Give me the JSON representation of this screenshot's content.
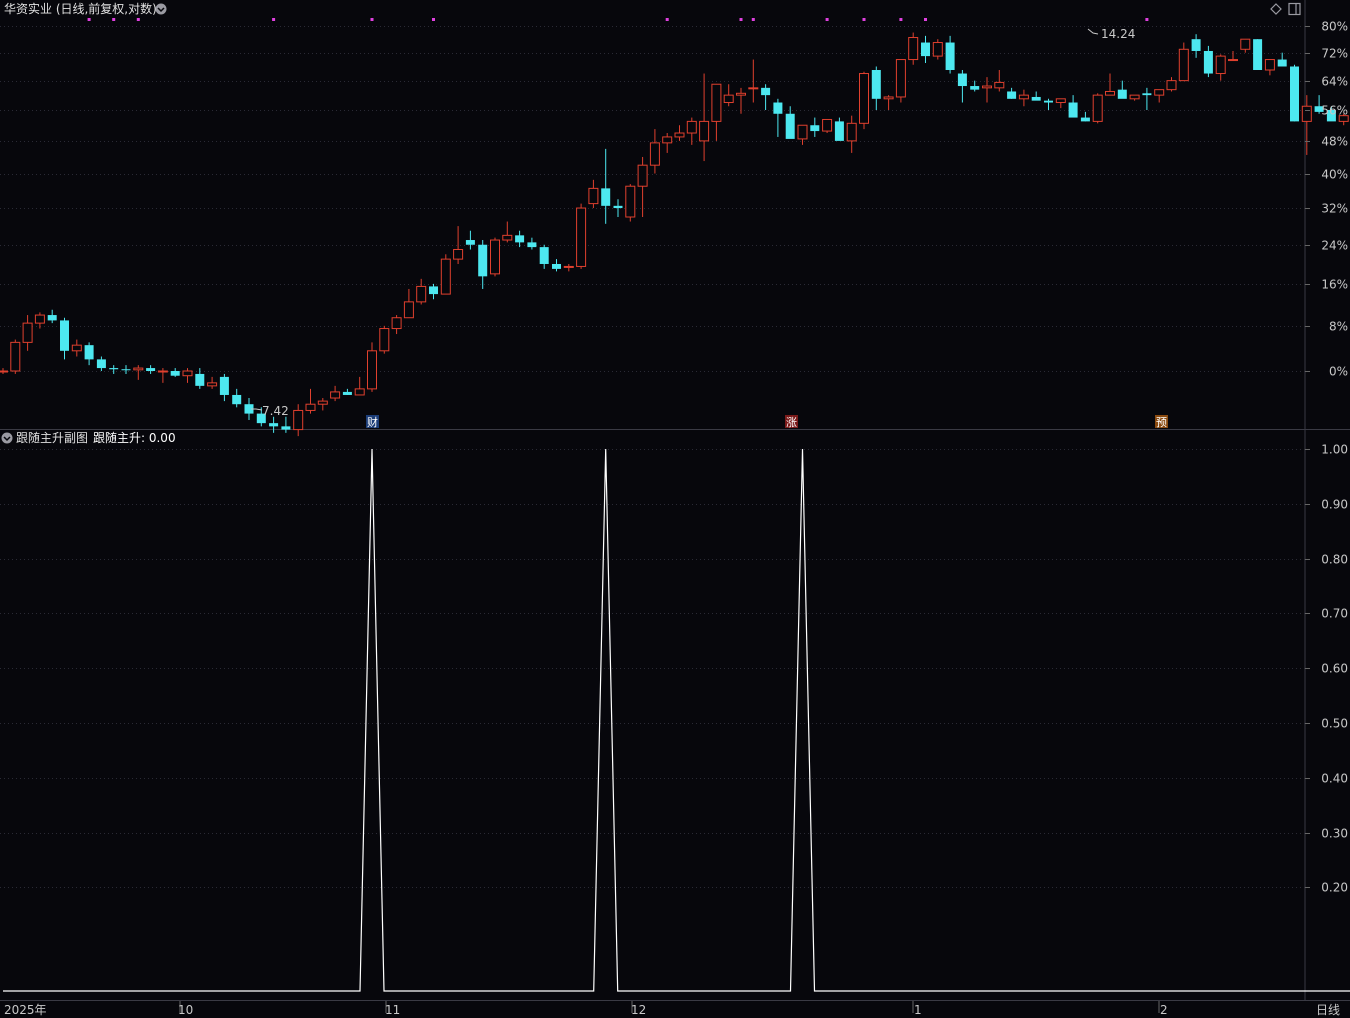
{
  "main_header": {
    "title": "华资实业 (日线,前复权,对数)"
  },
  "main_axis_ticks": [
    "80%",
    "72%",
    "64%",
    "56%",
    "48%",
    "40%",
    "32%",
    "24%",
    "16%",
    "8%",
    "0%"
  ],
  "price_marks": {
    "high": "14.24",
    "low": "7.42"
  },
  "event_tags": [
    {
      "label": "财",
      "color": "#3a6fd0"
    },
    {
      "label": "涨",
      "color": "#d03030"
    },
    {
      "label": "预",
      "color": "#d07a20"
    }
  ],
  "sub_header": {
    "title": "跟随主升副图",
    "indicator": "跟随主升: 0.00"
  },
  "sub_axis_ticks": [
    "1.00",
    "0.90",
    "0.80",
    "0.70",
    "0.60",
    "0.50",
    "0.40",
    "0.30",
    "0.20"
  ],
  "bottom_axis": {
    "labels": [
      "2025年",
      "10",
      "11",
      "12",
      "1",
      "2"
    ],
    "period": "日线"
  },
  "colors": {
    "up": "#e0402e",
    "down": "#4de8f0",
    "signal_dot": "#e040e0",
    "line": "#ffffff",
    "grid": "#2a2a35",
    "text": "#c8c8c8"
  },
  "chart_data": [
    {
      "type": "candlestick",
      "title": "华资实业 (日线,前复权,对数)",
      "scale": "log",
      "y_tick_labels": [
        "80%",
        "72%",
        "64%",
        "56%",
        "48%",
        "40%",
        "32%",
        "24%",
        "16%",
        "8%",
        "0%"
      ],
      "period_high": 14.24,
      "period_low": 7.42,
      "candles_pct": [
        [
          0.0,
          0.5,
          -0.5,
          0.0
        ],
        [
          0.0,
          5.5,
          -0.5,
          5.0
        ],
        [
          5.0,
          10.0,
          3.5,
          8.5
        ],
        [
          8.5,
          10.5,
          7.5,
          10.0
        ],
        [
          10.0,
          11.0,
          8.5,
          9.0
        ],
        [
          9.0,
          9.5,
          2.0,
          3.5
        ],
        [
          3.5,
          5.5,
          2.5,
          4.5
        ],
        [
          4.5,
          5.0,
          1.0,
          2.0
        ],
        [
          2.0,
          2.5,
          0.0,
          0.5
        ],
        [
          0.5,
          1.0,
          -0.5,
          0.3
        ],
        [
          0.3,
          1.0,
          -0.5,
          0.2
        ],
        [
          0.2,
          1.0,
          -1.5,
          0.5
        ],
        [
          0.5,
          1.0,
          -0.5,
          0.0
        ],
        [
          0.0,
          0.5,
          -2.0,
          0.0
        ],
        [
          0.0,
          0.5,
          -1.0,
          -0.8
        ],
        [
          -0.8,
          0.5,
          -2.0,
          0.0
        ],
        [
          -0.5,
          0.5,
          -3.0,
          -2.5
        ],
        [
          -2.5,
          -1.0,
          -3.0,
          -2.0
        ],
        [
          -1.0,
          -0.5,
          -5.0,
          -4.0
        ],
        [
          -4.0,
          -3.0,
          -6.0,
          -5.5
        ],
        [
          -5.5,
          -4.5,
          -8.0,
          -7.0
        ],
        [
          -7.0,
          -6.0,
          -9.0,
          -8.5
        ],
        [
          -8.5,
          -7.5,
          -10.0,
          -9.0
        ],
        [
          -9.0,
          -7.5,
          -10.0,
          -9.5
        ],
        [
          -9.5,
          -5.5,
          -10.5,
          -6.5
        ],
        [
          -6.5,
          -3.0,
          -7.0,
          -5.5
        ],
        [
          -5.5,
          -4.5,
          -6.5,
          -5.0
        ],
        [
          -4.5,
          -2.5,
          -5.0,
          -3.5
        ],
        [
          -3.5,
          -3.0,
          -4.0,
          -4.0
        ],
        [
          -4.0,
          -1.0,
          -4.0,
          -3.0
        ],
        [
          -3.0,
          5.0,
          -3.5,
          3.5
        ],
        [
          3.5,
          8.0,
          3.0,
          7.5
        ],
        [
          7.5,
          10.0,
          6.5,
          9.5
        ],
        [
          9.5,
          15.0,
          9.5,
          12.5
        ],
        [
          12.5,
          17.0,
          12.0,
          15.5
        ],
        [
          15.5,
          16.0,
          13.0,
          14.0
        ],
        [
          14.0,
          22.0,
          14.0,
          21.0
        ],
        [
          21.0,
          28.0,
          20.0,
          23.0
        ],
        [
          25.0,
          27.0,
          23.0,
          24.0
        ],
        [
          24.0,
          25.0,
          15.0,
          17.5
        ],
        [
          18.0,
          25.5,
          17.5,
          25.0
        ],
        [
          25.0,
          29.0,
          24.5,
          26.0
        ],
        [
          26.0,
          27.0,
          23.5,
          24.5
        ],
        [
          24.5,
          25.5,
          23.0,
          23.5
        ],
        [
          23.5,
          24.0,
          19.0,
          20.0
        ],
        [
          20.0,
          21.0,
          18.5,
          19.0
        ],
        [
          19.5,
          20.0,
          18.5,
          19.5
        ],
        [
          19.5,
          33.0,
          19.0,
          32.0
        ],
        [
          33.0,
          38.5,
          32.0,
          36.5
        ],
        [
          36.5,
          46.0,
          28.5,
          32.5
        ],
        [
          32.5,
          34.0,
          30.0,
          32.0
        ],
        [
          30.0,
          37.5,
          29.0,
          37.0
        ],
        [
          37.0,
          44.0,
          30.0,
          42.0
        ],
        [
          42.0,
          51.0,
          40.0,
          47.5
        ],
        [
          47.5,
          50.0,
          45.0,
          49.0
        ],
        [
          49.0,
          52.0,
          48.0,
          50.0
        ],
        [
          50.0,
          54.0,
          47.0,
          53.0
        ],
        [
          48.0,
          66.0,
          43.0,
          53.0
        ],
        [
          53.0,
          63.0,
          48.0,
          63.0
        ],
        [
          58.0,
          63.0,
          57.0,
          60.0
        ],
        [
          60.0,
          62.0,
          55.0,
          60.5
        ],
        [
          62.0,
          70.0,
          58.0,
          62.0
        ],
        [
          62.0,
          63.0,
          56.0,
          60.0
        ],
        [
          58.0,
          59.0,
          49.0,
          55.0
        ],
        [
          55.0,
          57.0,
          50.0,
          48.5
        ],
        [
          48.5,
          52.0,
          47.0,
          52.0
        ],
        [
          52.0,
          54.0,
          49.0,
          50.5
        ],
        [
          50.5,
          52.0,
          50.0,
          53.5
        ],
        [
          53.0,
          54.0,
          49.0,
          48.0
        ],
        [
          48.0,
          54.5,
          45.0,
          52.5
        ],
        [
          52.5,
          66.5,
          51.0,
          66.0
        ],
        [
          67.0,
          68.0,
          56.0,
          59.0
        ],
        [
          59.0,
          60.0,
          56.0,
          59.5
        ],
        [
          59.5,
          70.0,
          58.0,
          70.0
        ],
        [
          70.0,
          78.0,
          68.5,
          76.5
        ],
        [
          75.0,
          77.0,
          69.0,
          71.0
        ],
        [
          71.0,
          76.0,
          70.0,
          75.0
        ],
        [
          75.0,
          77.0,
          66.0,
          67.0
        ],
        [
          66.0,
          67.0,
          58.0,
          62.5
        ],
        [
          62.5,
          64.0,
          61.0,
          61.5
        ],
        [
          62.0,
          65.0,
          58.0,
          62.5
        ],
        [
          62.0,
          67.0,
          61.0,
          63.5
        ],
        [
          61.0,
          62.0,
          59.0,
          59.0
        ],
        [
          59.0,
          61.5,
          57.0,
          60.0
        ],
        [
          59.5,
          61.0,
          59.0,
          58.5
        ],
        [
          58.5,
          59.0,
          56.0,
          58.0
        ],
        [
          58.0,
          59.0,
          56.5,
          59.0
        ],
        [
          58.0,
          60.0,
          57.5,
          54.0
        ],
        [
          54.0,
          55.5,
          53.0,
          53.0
        ],
        [
          53.0,
          60.5,
          52.5,
          60.0
        ],
        [
          60.0,
          66.0,
          60.0,
          61.0
        ],
        [
          61.5,
          64.0,
          60.0,
          59.0
        ],
        [
          59.0,
          60.0,
          58.5,
          60.0
        ],
        [
          60.5,
          62.0,
          56.0,
          60.0
        ],
        [
          60.0,
          61.5,
          58.0,
          61.5
        ],
        [
          61.5,
          65.0,
          61.0,
          64.0
        ],
        [
          64.0,
          75.0,
          64.0,
          73.0
        ],
        [
          76.0,
          77.5,
          70.5,
          72.5
        ],
        [
          72.5,
          74.0,
          65.0,
          66.0
        ],
        [
          66.0,
          71.5,
          64.0,
          71.0
        ],
        [
          70.0,
          72.5,
          70.0,
          70.0
        ],
        [
          73.0,
          76.0,
          72.0,
          76.0
        ],
        [
          76.0,
          76.0,
          68.0,
          67.0
        ],
        [
          67.0,
          70.0,
          65.5,
          70.0
        ],
        [
          70.0,
          72.0,
          69.0,
          68.0
        ],
        [
          68.0,
          68.5,
          53.0,
          53.0
        ],
        [
          53.0,
          60.0,
          44.5,
          57.0
        ],
        [
          57.0,
          60.0,
          55.0,
          55.5
        ],
        [
          56.0,
          57.0,
          54.0,
          53.0
        ],
        [
          53.0,
          55.0,
          52.0,
          54.5
        ],
        [
          54.5,
          58.0,
          53.0,
          55.5
        ]
      ]
    },
    {
      "type": "line",
      "title": "跟随主升副图",
      "series": [
        {
          "name": "跟随主升",
          "spikes_at_candle": [
            30,
            49,
            65
          ],
          "peak_value": 1.0,
          "base_value": 0.0,
          "last_value": 0.0
        }
      ],
      "ylim": [
        0,
        1.0
      ]
    }
  ]
}
